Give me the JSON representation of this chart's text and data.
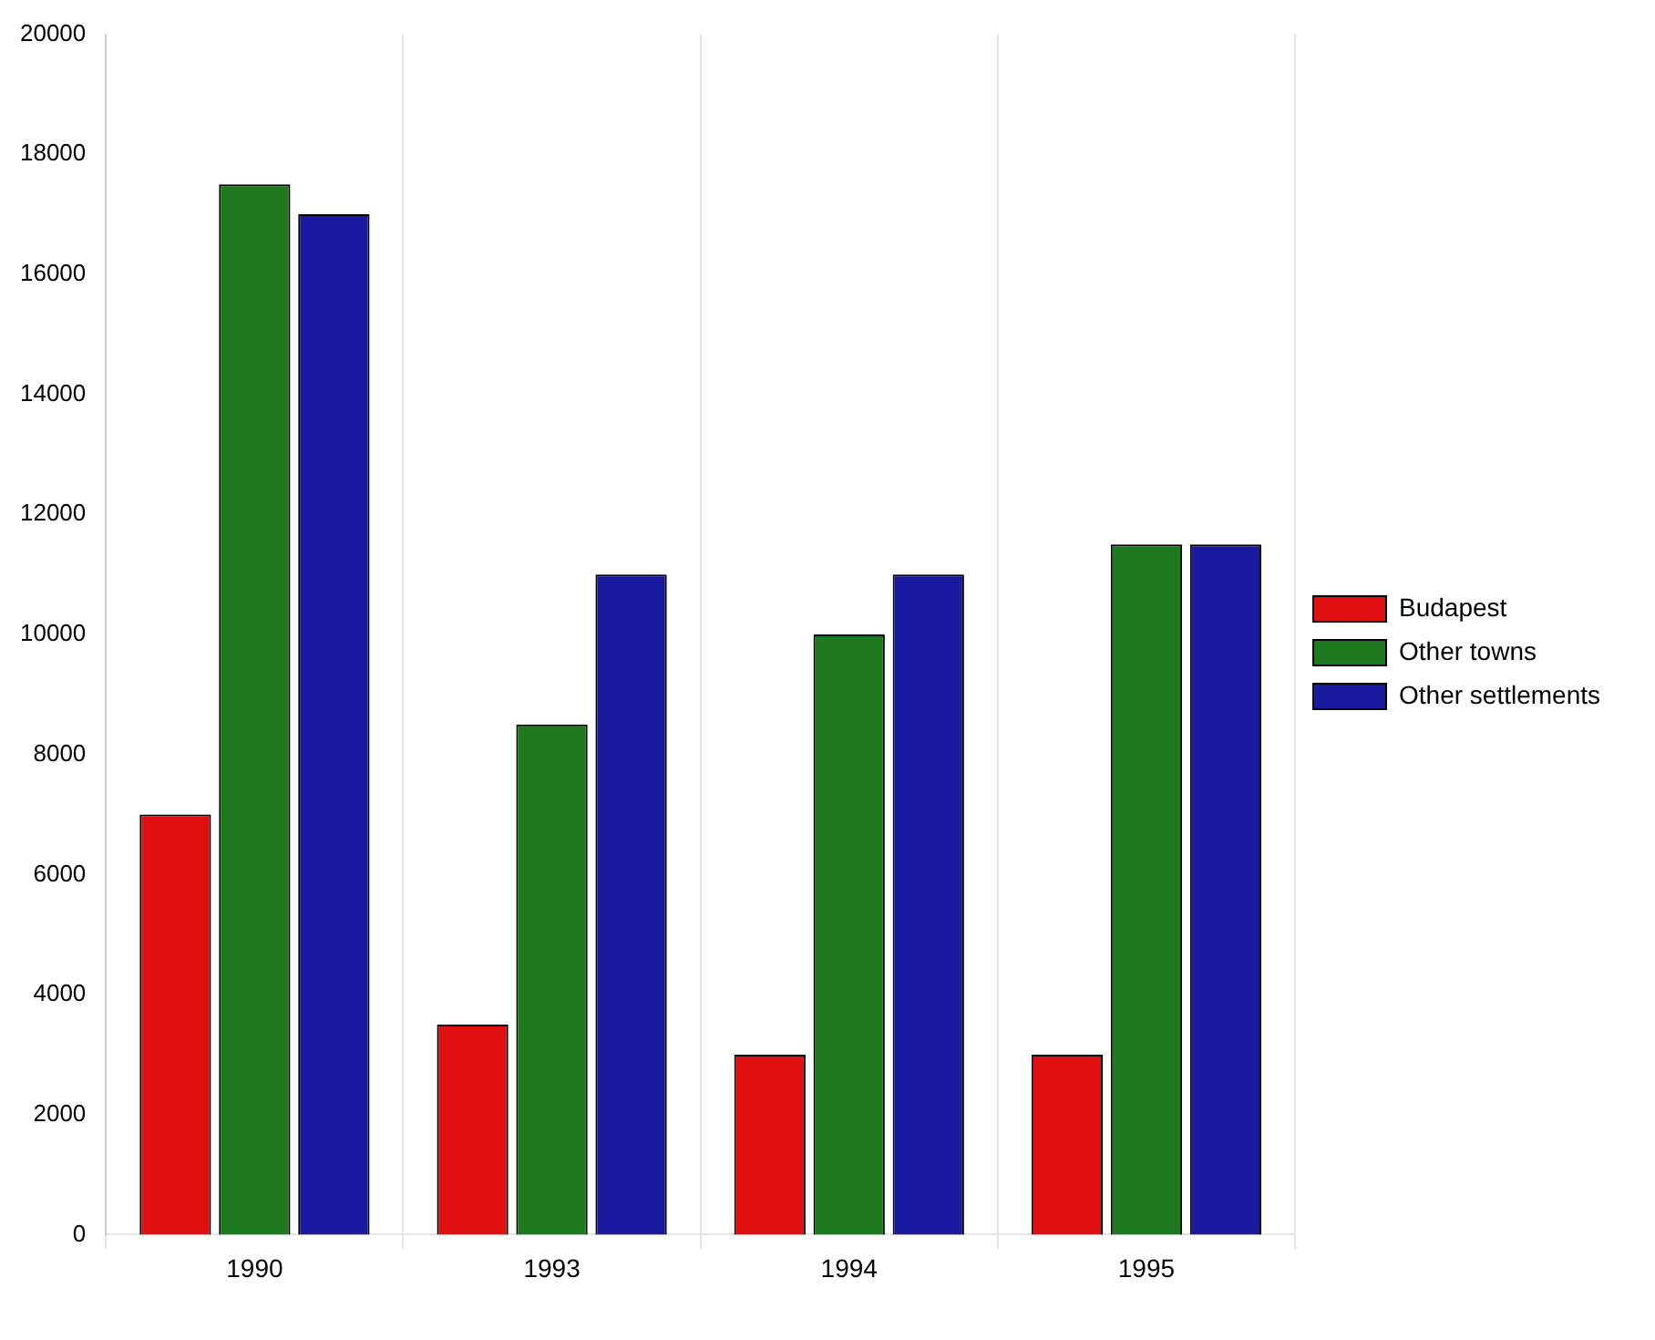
{
  "chart_data": {
    "type": "bar",
    "categories": [
      "1990",
      "1993",
      "1994",
      "1995"
    ],
    "series": [
      {
        "name": "Budapest",
        "color": "#e01010",
        "values": [
          7000,
          3500,
          3000,
          3000
        ]
      },
      {
        "name": "Other towns",
        "color": "#1e7a1e",
        "values": [
          17500,
          8500,
          10000,
          11500
        ]
      },
      {
        "name": "Other settlements",
        "color": "#1a1aa0",
        "values": [
          17000,
          11000,
          11000,
          11500
        ]
      }
    ],
    "ylim": [
      0,
      20000
    ],
    "yticks": [
      0,
      2000,
      4000,
      6000,
      8000,
      10000,
      12000,
      14000,
      16000,
      18000,
      20000
    ],
    "grid": "x",
    "legend": "right"
  }
}
